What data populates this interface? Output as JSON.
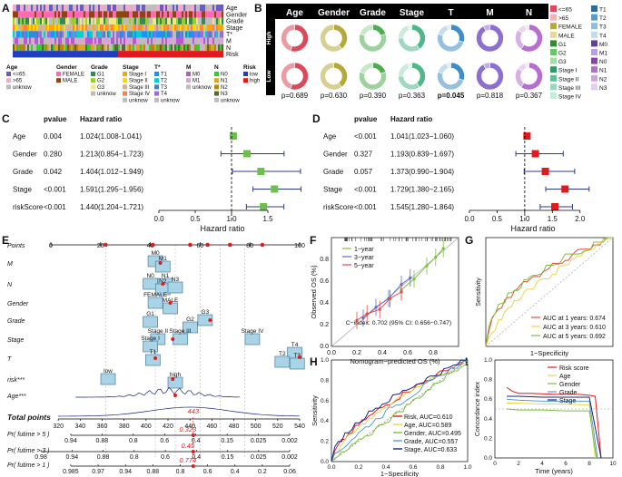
{
  "panel_letters": {
    "a": "A",
    "b": "B",
    "c": "C",
    "d": "D",
    "e": "E",
    "f": "F",
    "g": "G",
    "h": "H",
    "i": "I"
  },
  "heatmap": {
    "rows": [
      "Age",
      "Gender",
      "Grade",
      "Stage",
      "T*",
      "M",
      "N",
      "Risk"
    ],
    "legend_groups": [
      {
        "title": "Age",
        "items": [
          {
            "label": "<=65",
            "color": "#6a5acd"
          },
          {
            "label": ">65",
            "color": "#f4a9c8"
          },
          {
            "label": "unknow",
            "color": "#bdbdbd"
          }
        ]
      },
      {
        "title": "Gender",
        "items": [
          {
            "label": "FEMALE",
            "color": "#ff69b4"
          },
          {
            "label": "MALE",
            "color": "#8b4513"
          }
        ]
      },
      {
        "title": "Grade",
        "items": [
          {
            "label": "G1",
            "color": "#2e8b57"
          },
          {
            "label": "G2",
            "color": "#9acd32"
          },
          {
            "label": "G3",
            "color": "#f0e68c"
          },
          {
            "label": "unknow",
            "color": "#bdbdbd"
          }
        ]
      },
      {
        "title": "Stage",
        "items": [
          {
            "label": "Stage I",
            "color": "#ffa500"
          },
          {
            "label": "Stage II",
            "color": "#ffd700"
          },
          {
            "label": "Stage III",
            "color": "#d2b48c"
          },
          {
            "label": "Stage IV",
            "color": "#ff7f50"
          },
          {
            "label": "unknow",
            "color": "#bdbdbd"
          }
        ]
      },
      {
        "title": "T*",
        "items": [
          {
            "label": "T1",
            "color": "#1e90ff"
          },
          {
            "label": "T2",
            "color": "#00ced1"
          },
          {
            "label": "T3",
            "color": "#4682b4"
          },
          {
            "label": "T4",
            "color": "#9370db"
          },
          {
            "label": "unknow",
            "color": "#bdbdbd"
          }
        ]
      },
      {
        "title": "M",
        "items": [
          {
            "label": "M0",
            "color": "#ba55d3"
          },
          {
            "label": "M1",
            "color": "#dda0dd"
          },
          {
            "label": "unknow",
            "color": "#bdbdbd"
          }
        ]
      },
      {
        "title": "N",
        "items": [
          {
            "label": "N0",
            "color": "#32cd32"
          },
          {
            "label": "N1",
            "color": "#daa520"
          },
          {
            "label": "N2",
            "color": "#b8860b"
          },
          {
            "label": "N3",
            "color": "#556b2f"
          },
          {
            "label": "unknow",
            "color": "#bdbdbd"
          }
        ]
      },
      {
        "title": "Risk",
        "items": [
          {
            "label": "low",
            "color": "#1f3fbf"
          },
          {
            "label": "high",
            "color": "#e31a1c"
          }
        ]
      }
    ]
  },
  "donuts": {
    "headers": [
      "Age",
      "Gender",
      "Grade",
      "Stage",
      "T",
      "M",
      "N"
    ],
    "group_high": "High\n(203)",
    "group_low": "Low\n(204)",
    "pvalues": [
      "p=0.689",
      "p=0.630",
      "p=0.390",
      "p=0.363",
      "p=0.045",
      "p=0.818",
      "p=0.367"
    ],
    "colors": [
      "#d94a5a",
      "#b5a93a",
      "#4cae4c",
      "#4fb88a",
      "#3f8fc6",
      "#8c6fd1",
      "#b66fd0"
    ],
    "legend": [
      {
        "label": "<=65",
        "color": "#d94a5a"
      },
      {
        "label": ">65",
        "color": "#f2b0b8"
      },
      {
        "label": "FEMALE",
        "color": "#b5a93a"
      },
      {
        "label": "MALE",
        "color": "#e3d99a"
      },
      {
        "label": "G1",
        "color": "#2e8b2e"
      },
      {
        "label": "G2",
        "color": "#6cc46c"
      },
      {
        "label": "G3",
        "color": "#a8dca8"
      },
      {
        "label": "Stage I",
        "color": "#2f9a6a"
      },
      {
        "label": "Stage II",
        "color": "#5cc196"
      },
      {
        "label": "Stage III",
        "color": "#98d9bb"
      },
      {
        "label": "Stage IV",
        "color": "#c8ecda"
      },
      {
        "label": "T1",
        "color": "#1f6fae"
      },
      {
        "label": "T2",
        "color": "#4f9fd6"
      },
      {
        "label": "T3",
        "color": "#88c0e8"
      },
      {
        "label": "T4",
        "color": "#c0def3"
      },
      {
        "label": "M0",
        "color": "#5e3fb0"
      },
      {
        "label": "M1",
        "color": "#b3a0e6"
      },
      {
        "label": "N0",
        "color": "#8e3fb0"
      },
      {
        "label": "N1",
        "color": "#b06fd0"
      },
      {
        "label": "N2",
        "color": "#cfa3e3"
      },
      {
        "label": "N3",
        "color": "#e6cdf0"
      }
    ]
  },
  "forest_c": {
    "head_p": "pvalue",
    "head_hr": "Hazard ratio",
    "xlabel": "Hazard ratio",
    "ticks": [
      "0.0",
      "0.5",
      "1.0",
      "1.5"
    ],
    "rows": [
      {
        "name": "Age",
        "p": "0.004",
        "hr_text": "1.024(1.008-1.041)"
      },
      {
        "name": "Gender",
        "p": "0.280",
        "hr_text": "1.213(0.854−1.723)"
      },
      {
        "name": "Grade",
        "p": "0.042",
        "hr_text": "1.404(1.012−1.949)"
      },
      {
        "name": "Stage",
        "p": "<0.001",
        "hr_text": "1.591(1.295−1.956)"
      },
      {
        "name": "riskScore",
        "p": "<0.001",
        "hr_text": "1.440(1.204−1.721)"
      }
    ]
  },
  "forest_d": {
    "head_p": "pvalue",
    "head_hr": "Hazard ratio",
    "xlabel": "Hazard ratio",
    "ticks": [
      "0.0",
      "0.5",
      "1.0",
      "1.5",
      "2.0"
    ],
    "rows": [
      {
        "name": "Age",
        "p": "<0.001",
        "hr_text": "1.041(1.023−1.060)"
      },
      {
        "name": "Gender",
        "p": "0.327",
        "hr_text": "1.193(0.839−1.697)"
      },
      {
        "name": "Grade",
        "p": "0.057",
        "hr_text": "1.373(0.990−1.904)"
      },
      {
        "name": "Stage",
        "p": "<0.001",
        "hr_text": "1.729(1.380−2.165)"
      },
      {
        "name": "riskScore",
        "p": "<0.001",
        "hr_text": "1.545(1.280−1.864)"
      }
    ]
  },
  "chart_data": [
    {
      "id": "C",
      "type": "forest",
      "title": "",
      "xlabel": "Hazard ratio",
      "xlim": [
        0,
        1.75
      ],
      "categories": [
        "Age",
        "Gender",
        "Grade",
        "Stage",
        "riskScore"
      ],
      "hr": [
        1.024,
        1.213,
        1.404,
        1.591,
        1.44
      ],
      "lo": [
        1.008,
        0.854,
        1.012,
        1.295,
        1.204
      ],
      "hi": [
        1.041,
        1.723,
        1.949,
        1.956,
        1.721
      ]
    },
    {
      "id": "D",
      "type": "forest",
      "title": "",
      "xlabel": "Hazard ratio",
      "xlim": [
        0,
        2.3
      ],
      "categories": [
        "Age",
        "Gender",
        "Grade",
        "Stage",
        "riskScore"
      ],
      "hr": [
        1.041,
        1.193,
        1.373,
        1.729,
        1.545
      ],
      "lo": [
        1.023,
        0.839,
        0.99,
        1.38,
        1.28
      ],
      "hi": [
        1.06,
        1.697,
        1.904,
        2.165,
        1.864
      ]
    },
    {
      "id": "F",
      "type": "line",
      "title": "",
      "xlabel": "Nomogram−predicted OS (%)",
      "ylabel": "Observed OS (%)",
      "xlim": [
        0,
        1
      ],
      "ylim": [
        0,
        1
      ],
      "annotation": "C−index: 0.702 (95% CI: 0.656−0.747)",
      "legend": [
        "1−year",
        "3−year",
        "5−year"
      ],
      "series": [
        {
          "name": "1−year",
          "color": "#7fbf3f",
          "x": [
            0.55,
            0.65,
            0.75,
            0.82,
            0.88
          ],
          "y": [
            0.52,
            0.62,
            0.74,
            0.82,
            0.9
          ]
        },
        {
          "name": "3−year",
          "color": "#5b6fd6",
          "x": [
            0.25,
            0.35,
            0.45,
            0.55,
            0.62
          ],
          "y": [
            0.26,
            0.36,
            0.44,
            0.57,
            0.63
          ]
        },
        {
          "name": "5−year",
          "color": "#e84a4a",
          "x": [
            0.2,
            0.28,
            0.38,
            0.46,
            0.55
          ],
          "y": [
            0.24,
            0.3,
            0.34,
            0.44,
            0.5
          ]
        }
      ]
    },
    {
      "id": "G",
      "type": "line",
      "title": "",
      "xlabel": "1−Specificity",
      "ylabel": "Sensitivity",
      "xlim": [
        0,
        1
      ],
      "ylim": [
        0,
        1
      ],
      "legend": [
        "AUC at 1 years: 0.674",
        "AUC at 3 years: 0.610",
        "AUC at 5 years: 0.692"
      ],
      "series": [
        {
          "name": "AUC at 1 years: 0.674",
          "color": "#e84a4a",
          "auc": 0.674
        },
        {
          "name": "AUC at 3 years: 0.610",
          "color": "#e6d84a",
          "auc": 0.61
        },
        {
          "name": "AUC at 5 years: 0.692",
          "color": "#7fbf3f",
          "auc": 0.692
        }
      ]
    },
    {
      "id": "H",
      "type": "line",
      "title": "",
      "xlabel": "1−Specificity",
      "ylabel": "Sensitivity",
      "xlim": [
        0,
        1
      ],
      "ylim": [
        0,
        1
      ],
      "ticks": [
        "0.0",
        "0.2",
        "0.4",
        "0.6",
        "0.8",
        "1.0"
      ],
      "legend": [
        "Risk, AUC=0.610",
        "Age, AUC=0.589",
        "Gender, AUC=0.495",
        "Grade, AUC=0.557",
        "Stage, AUC=0.633"
      ],
      "series": [
        {
          "name": "Risk, AUC=0.610",
          "color": "#e31a1c",
          "auc": 0.61
        },
        {
          "name": "Age, AUC=0.589",
          "color": "#e6d84a",
          "auc": 0.589
        },
        {
          "name": "Gender, AUC=0.495",
          "color": "#7fbf3f",
          "auc": 0.495
        },
        {
          "name": "Grade, AUC=0.557",
          "color": "#5b9bd5",
          "auc": 0.557
        },
        {
          "name": "Stage, AUC=0.633",
          "color": "#1a237e",
          "auc": 0.633
        }
      ]
    },
    {
      "id": "I",
      "type": "line",
      "title": "",
      "xlabel": "Time (years)",
      "ylabel": "Concordance index",
      "xlim": [
        0,
        10
      ],
      "ylim": [
        0,
        1
      ],
      "xticks": [
        "0",
        "2",
        "4",
        "6",
        "8",
        "10"
      ],
      "yticks": [
        "0.0",
        "0.2",
        "0.4",
        "0.6",
        "0.8",
        "1.0"
      ],
      "legend": [
        "Risk score",
        "Age",
        "Gender",
        "Grade",
        "Stage"
      ],
      "series": [
        {
          "name": "Risk score",
          "color": "#e31a1c",
          "x": [
            1,
            1.5,
            2,
            3,
            5,
            7,
            8,
            8.5,
            9
          ],
          "y": [
            0.72,
            0.68,
            0.66,
            0.66,
            0.65,
            0.65,
            0.64,
            0.63,
            0.0
          ]
        },
        {
          "name": "Age",
          "color": "#e6d84a",
          "x": [
            1,
            2,
            4,
            6,
            8,
            8.5
          ],
          "y": [
            0.56,
            0.56,
            0.55,
            0.55,
            0.54,
            0.0
          ]
        },
        {
          "name": "Gender",
          "color": "#7fbf3f",
          "x": [
            1,
            2,
            4,
            6,
            8,
            8.6
          ],
          "y": [
            0.5,
            0.49,
            0.49,
            0.48,
            0.48,
            0.0
          ]
        },
        {
          "name": "Grade",
          "color": "#5b9bd5",
          "x": [
            1,
            2,
            4,
            6,
            8,
            8.7
          ],
          "y": [
            0.6,
            0.59,
            0.58,
            0.58,
            0.58,
            0.0
          ]
        },
        {
          "name": "Stage",
          "color": "#1a237e",
          "x": [
            1,
            2,
            4,
            6,
            8,
            9
          ],
          "y": [
            0.63,
            0.63,
            0.62,
            0.62,
            0.62,
            0.0
          ]
        }
      ]
    }
  ],
  "nomogram": {
    "rows": [
      "Points",
      "M",
      "N",
      "Gender",
      "Grade",
      "Stage",
      "T",
      "risk***",
      "Age***",
      "Total points",
      "Pr( futime > 5 )",
      "Pr( futime > 3 )",
      "Pr( futime > 1 )"
    ],
    "points_ticks": [
      "0",
      "20",
      "40",
      "60",
      "80",
      "100"
    ],
    "total_ticks": [
      "320",
      "340",
      "360",
      "380",
      "400",
      "420",
      "440",
      "460",
      "480",
      "500",
      "520",
      "540"
    ],
    "total_value": "443",
    "pr5_value": "0.323",
    "pr3_value": "0.45",
    "pr1_value": "0.774",
    "pr5_ticks": [
      "0.94",
      "0.88",
      "0.8",
      "0.6",
      "0.4",
      "0.15",
      "0.025",
      "0.002"
    ],
    "pr3_ticks": [
      "0.98",
      "0.94",
      "0.88",
      "0.8",
      "0.6",
      "0.4",
      "0.15",
      "0.025",
      "0.002"
    ],
    "pr1_ticks": [
      "0.985",
      "0.97",
      "0.94",
      "0.88",
      "0.8",
      "0.6",
      "0.4",
      "0.2",
      "0.06"
    ],
    "box_labels": {
      "M0": "M0",
      "M1": "M1",
      "N0": "N0",
      "N1": "N1",
      "N2": "N2",
      "N3": "N3",
      "FEMALE": "FEMALE",
      "MALE": "MALE",
      "G1": "G1",
      "G2": "G2",
      "G3": "G3",
      "StageII": "Stage II",
      "StageIII": "Stage III",
      "StageI": "Stage I",
      "StageIV": "Stage IV",
      "T1": "T1",
      "T2": "T2",
      "T3": "T3",
      "T4": "T4",
      "low": "low",
      "high": "high"
    },
    "age_ticks": [
      "40",
      "45",
      "50",
      "55",
      "60",
      "65",
      "70",
      "75",
      "80",
      "85"
    ]
  }
}
